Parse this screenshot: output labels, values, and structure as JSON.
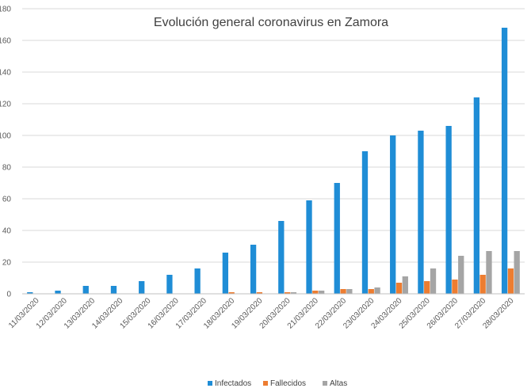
{
  "chart_data": {
    "type": "bar",
    "title": "Evolución general coronavirus en Zamora",
    "xlabel": "",
    "ylabel": "",
    "ylim": [
      0,
      180
    ],
    "yticks": [
      0,
      20,
      40,
      60,
      80,
      100,
      120,
      140,
      160,
      180
    ],
    "grid": true,
    "legend_position": "bottom",
    "categories": [
      "11/03/2020",
      "12/03/2020",
      "13/03/2020",
      "14/03/2020",
      "15/03/2020",
      "16/03/2020",
      "17/03/2020",
      "18/03/2020",
      "19/03/2020",
      "20/03/2020",
      "21/03/2020",
      "22/03/2020",
      "23/03/2020",
      "24/03/2020",
      "25/03/2020",
      "26/03/2020",
      "27/03/2020",
      "28/03/2020"
    ],
    "series": [
      {
        "name": "Infectados",
        "color": "#1f8dd6",
        "values": [
          1,
          2,
          5,
          5,
          8,
          12,
          16,
          26,
          31,
          46,
          59,
          70,
          90,
          100,
          103,
          106,
          124,
          168
        ]
      },
      {
        "name": "Fallecidos",
        "color": "#ed7d31",
        "values": [
          0,
          0,
          0,
          0,
          0,
          0,
          0,
          1,
          1,
          1,
          2,
          3,
          3,
          7,
          8,
          9,
          12,
          16
        ]
      },
      {
        "name": "Altas",
        "color": "#a5a5a5",
        "values": [
          0,
          0,
          0,
          0,
          0,
          0,
          0,
          0,
          0,
          1,
          2,
          3,
          4,
          11,
          16,
          24,
          27,
          27
        ]
      }
    ]
  }
}
